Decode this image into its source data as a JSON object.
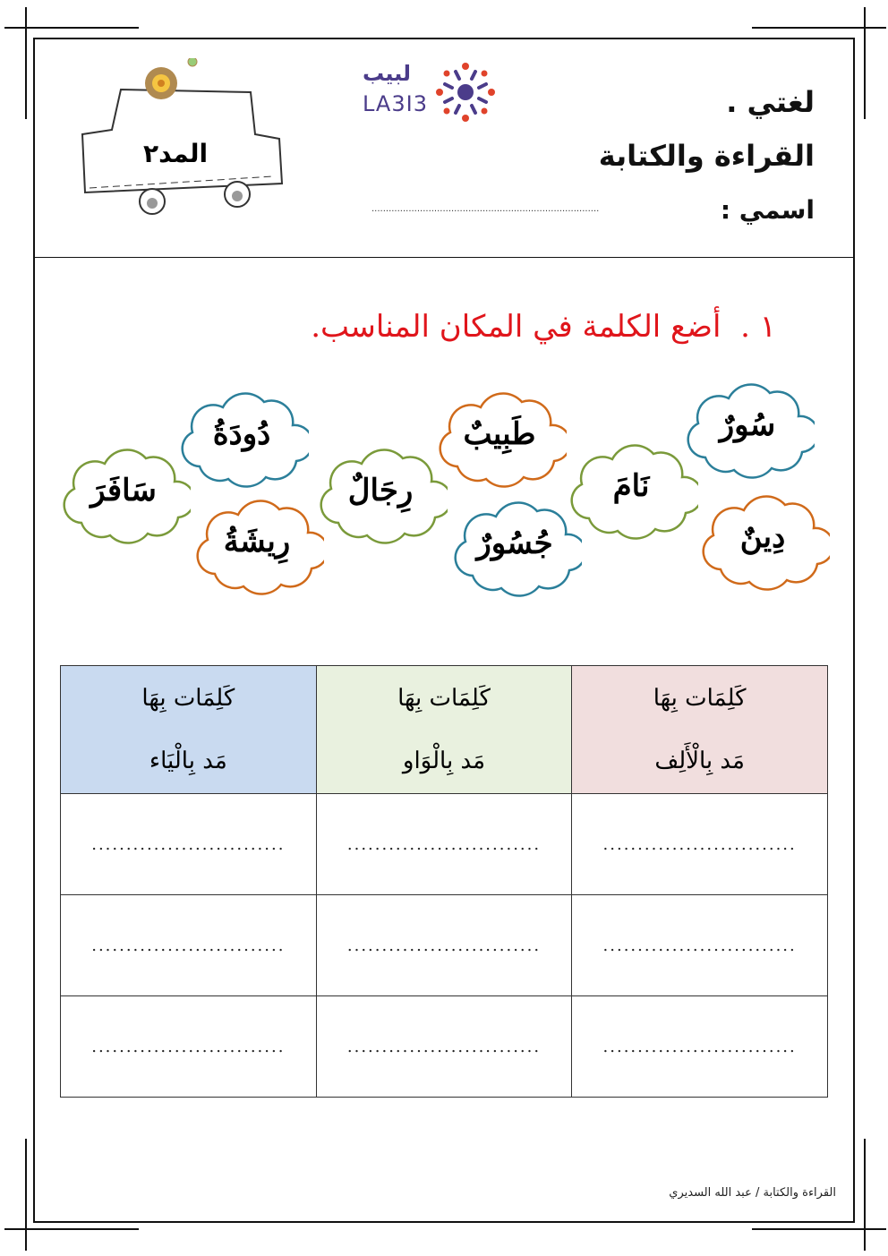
{
  "header": {
    "subject": "لغتي .",
    "topic": "القراءة والكتابة",
    "name_label": "اسمي :",
    "name_blank": "................................................................................",
    "badge": "المد٢",
    "logo_arabic": "لبيب",
    "logo_latin": "LA3I3"
  },
  "exercise": {
    "number": "١ .",
    "instruction": "أضع الكلمة في المكان المناسب."
  },
  "words": [
    {
      "text": "سُورٌ",
      "color": "#2b7f9a"
    },
    {
      "text": "نَامَ",
      "color": "#7a9a3a"
    },
    {
      "text": "دِينٌ",
      "color": "#d06a1a"
    },
    {
      "text": "طَبِيبٌ",
      "color": "#d06a1a"
    },
    {
      "text": "جُسُورٌ",
      "color": "#2b7f9a"
    },
    {
      "text": "رِجَالٌ",
      "color": "#7a9a3a"
    },
    {
      "text": "دُودَةُ",
      "color": "#2b7f9a"
    },
    {
      "text": "سَافَرَ",
      "color": "#7a9a3a"
    },
    {
      "text": "رِيشَةُ",
      "color": "#d06a1a"
    }
  ],
  "table": {
    "columns": [
      {
        "line1": "كَلِمَات بِهَا",
        "line2": "مَد بِالْيَاء",
        "color": "#c9daf0"
      },
      {
        "line1": "كَلِمَات بِهَا",
        "line2": "مَد بِالْوَاو",
        "color": "#e9f1df"
      },
      {
        "line1": "كَلِمَات بِهَا",
        "line2": "مَد بِالْأَلِف",
        "color": "#f1dede"
      }
    ],
    "blank": "............................"
  },
  "footer": "القراءة والكتابة  /  عبد الله السديري"
}
